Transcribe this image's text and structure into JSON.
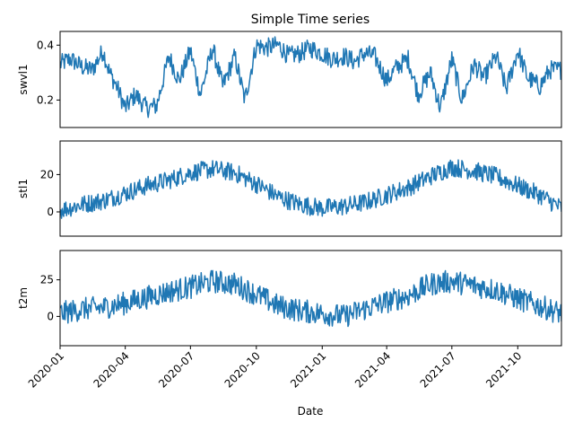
{
  "title": "Simple Time series",
  "xlabel": "Date",
  "x_tick_labels": [
    "2020-01",
    "2020-04",
    "2020-07",
    "2020-10",
    "2021-01",
    "2021-04",
    "2021-07",
    "2021-10"
  ],
  "x_tick_dates": [
    "2020-01-01",
    "2020-04-01",
    "2020-07-01",
    "2020-10-01",
    "2021-01-01",
    "2021-04-01",
    "2021-07-01",
    "2021-10-01"
  ],
  "xlim": [
    "2020-01-01",
    "2021-12-01"
  ],
  "line_color": "#1f77b4",
  "chart_data": [
    {
      "type": "line",
      "ylabel": "swvl1",
      "ylim": [
        0.1,
        0.45
      ],
      "yticks": [
        0.2,
        0.4
      ],
      "ytick_labels": [
        "0.2",
        "0.4"
      ],
      "x": [
        "2020-01-01",
        "2020-01-15",
        "2020-02-01",
        "2020-02-15",
        "2020-03-01",
        "2020-03-10",
        "2020-03-20",
        "2020-04-01",
        "2020-04-15",
        "2020-05-01",
        "2020-05-15",
        "2020-06-01",
        "2020-06-15",
        "2020-07-01",
        "2020-07-15",
        "2020-08-01",
        "2020-08-15",
        "2020-09-01",
        "2020-09-15",
        "2020-10-01",
        "2020-10-15",
        "2020-11-01",
        "2020-11-15",
        "2020-12-01",
        "2020-12-15",
        "2021-01-01",
        "2021-01-15",
        "2021-02-01",
        "2021-02-15",
        "2021-03-01",
        "2021-03-15",
        "2021-04-01",
        "2021-04-15",
        "2021-05-01",
        "2021-05-15",
        "2021-06-01",
        "2021-06-15",
        "2021-07-01",
        "2021-07-15",
        "2021-08-01",
        "2021-08-15",
        "2021-09-01",
        "2021-09-15",
        "2021-10-01",
        "2021-10-15",
        "2021-11-01",
        "2021-11-15",
        "2021-12-01"
      ],
      "y": [
        0.33,
        0.35,
        0.32,
        0.31,
        0.38,
        0.3,
        0.25,
        0.17,
        0.22,
        0.17,
        0.18,
        0.36,
        0.27,
        0.38,
        0.22,
        0.39,
        0.25,
        0.36,
        0.2,
        0.4,
        0.39,
        0.4,
        0.36,
        0.37,
        0.39,
        0.37,
        0.35,
        0.36,
        0.34,
        0.37,
        0.36,
        0.27,
        0.32,
        0.35,
        0.22,
        0.3,
        0.17,
        0.35,
        0.2,
        0.33,
        0.28,
        0.36,
        0.24,
        0.38,
        0.28,
        0.25,
        0.31,
        0.31
      ]
    },
    {
      "type": "line",
      "ylabel": "stl1",
      "ylim": [
        -13,
        38
      ],
      "yticks": [
        0,
        20
      ],
      "ytick_labels": [
        "0",
        "20"
      ],
      "x": [
        "2020-01-01",
        "2020-02-01",
        "2020-03-01",
        "2020-04-01",
        "2020-05-01",
        "2020-06-01",
        "2020-07-01",
        "2020-08-01",
        "2020-09-01",
        "2020-10-01",
        "2020-11-01",
        "2020-12-01",
        "2021-01-01",
        "2021-02-01",
        "2021-03-01",
        "2021-04-01",
        "2021-05-01",
        "2021-06-01",
        "2021-07-01",
        "2021-08-01",
        "2021-09-01",
        "2021-10-01",
        "2021-11-01",
        "2021-12-01"
      ],
      "y": [
        1,
        4,
        6,
        10,
        14,
        17,
        21,
        23,
        21,
        15,
        8,
        4,
        2,
        3,
        5,
        9,
        13,
        19,
        24,
        22,
        19,
        14,
        9,
        2
      ]
    },
    {
      "type": "line",
      "ylabel": "t2m",
      "ylim": [
        -20,
        45
      ],
      "yticks": [
        0,
        25
      ],
      "ytick_labels": [
        "0",
        "25"
      ],
      "x": [
        "2020-01-01",
        "2020-02-01",
        "2020-03-01",
        "2020-04-01",
        "2020-05-01",
        "2020-06-01",
        "2020-07-01",
        "2020-08-01",
        "2020-09-01",
        "2020-10-01",
        "2020-11-01",
        "2020-12-01",
        "2021-01-01",
        "2021-02-01",
        "2021-03-01",
        "2021-04-01",
        "2021-05-01",
        "2021-06-01",
        "2021-07-01",
        "2021-08-01",
        "2021-09-01",
        "2021-10-01",
        "2021-11-01",
        "2021-12-01"
      ],
      "y": [
        2,
        5,
        6,
        9,
        13,
        17,
        20,
        24,
        22,
        15,
        7,
        4,
        2,
        0,
        5,
        10,
        14,
        22,
        24,
        21,
        18,
        12,
        7,
        2
      ]
    }
  ]
}
